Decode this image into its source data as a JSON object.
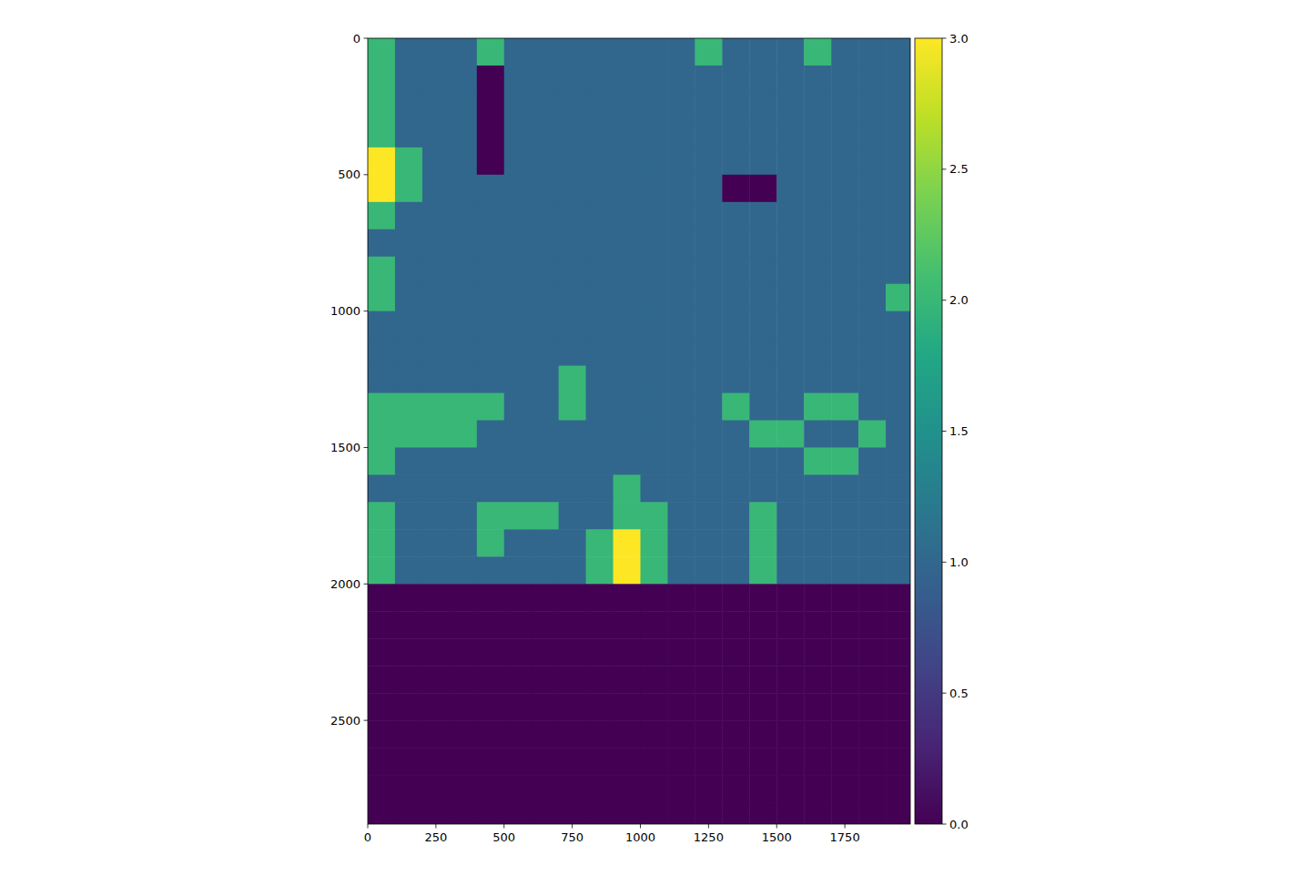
{
  "chart_data": {
    "type": "heatmap",
    "color": "viridis",
    "xlim": [
      0,
      1990
    ],
    "ylim": [
      2880,
      0
    ],
    "xticks": [
      0,
      250,
      500,
      750,
      1000,
      1250,
      1500,
      1750
    ],
    "yticks": [
      0,
      500,
      1000,
      1500,
      2000,
      2500
    ],
    "x_bins": [
      0,
      100,
      200,
      300,
      400,
      500,
      600,
      700,
      800,
      900,
      1000,
      1100,
      1200,
      1300,
      1400,
      1500,
      1600,
      1700,
      1800,
      1900,
      1990
    ],
    "y_bins": [
      0,
      100,
      200,
      300,
      400,
      500,
      600,
      700,
      800,
      900,
      1000,
      1100,
      1200,
      1300,
      1400,
      1500,
      1600,
      1700,
      1800,
      1900,
      2000,
      2100,
      2200,
      2300,
      2400,
      2500,
      2600,
      2700,
      2800,
      2880
    ],
    "values": [
      [
        2,
        1,
        1,
        1,
        2,
        1,
        1,
        1,
        1,
        1,
        1,
        1,
        2,
        1,
        1,
        1,
        2,
        1,
        1,
        1
      ],
      [
        2,
        1,
        1,
        1,
        0,
        1,
        1,
        1,
        1,
        1,
        1,
        1,
        1,
        1,
        1,
        1,
        1,
        1,
        1,
        1
      ],
      [
        2,
        1,
        1,
        1,
        0,
        1,
        1,
        1,
        1,
        1,
        1,
        1,
        1,
        1,
        1,
        1,
        1,
        1,
        1,
        1
      ],
      [
        2,
        1,
        1,
        1,
        0,
        1,
        1,
        1,
        1,
        1,
        1,
        1,
        1,
        1,
        1,
        1,
        1,
        1,
        1,
        1
      ],
      [
        3,
        2,
        1,
        1,
        0,
        1,
        1,
        1,
        1,
        1,
        1,
        1,
        1,
        1,
        1,
        1,
        1,
        1,
        1,
        1
      ],
      [
        3,
        2,
        1,
        1,
        1,
        1,
        1,
        1,
        1,
        1,
        1,
        1,
        1,
        0,
        0,
        1,
        1,
        1,
        1,
        1
      ],
      [
        2,
        1,
        1,
        1,
        1,
        1,
        1,
        1,
        1,
        1,
        1,
        1,
        1,
        1,
        1,
        1,
        1,
        1,
        1,
        1
      ],
      [
        1,
        1,
        1,
        1,
        1,
        1,
        1,
        1,
        1,
        1,
        1,
        1,
        1,
        1,
        1,
        1,
        1,
        1,
        1,
        1
      ],
      [
        2,
        1,
        1,
        1,
        1,
        1,
        1,
        1,
        1,
        1,
        1,
        1,
        1,
        1,
        1,
        1,
        1,
        1,
        1,
        1
      ],
      [
        2,
        1,
        1,
        1,
        1,
        1,
        1,
        1,
        1,
        1,
        1,
        1,
        1,
        1,
        1,
        1,
        1,
        1,
        1,
        2
      ],
      [
        1,
        1,
        1,
        1,
        1,
        1,
        1,
        1,
        1,
        1,
        1,
        1,
        1,
        1,
        1,
        1,
        1,
        1,
        1,
        1
      ],
      [
        1,
        1,
        1,
        1,
        1,
        1,
        1,
        1,
        1,
        1,
        1,
        1,
        1,
        1,
        1,
        1,
        1,
        1,
        1,
        1
      ],
      [
        1,
        1,
        1,
        1,
        1,
        1,
        1,
        2,
        1,
        1,
        1,
        1,
        1,
        1,
        1,
        1,
        1,
        1,
        1,
        1
      ],
      [
        2,
        2,
        2,
        2,
        2,
        1,
        1,
        2,
        1,
        1,
        1,
        1,
        1,
        2,
        1,
        1,
        2,
        2,
        1,
        1
      ],
      [
        2,
        2,
        2,
        2,
        1,
        1,
        1,
        1,
        1,
        1,
        1,
        1,
        1,
        1,
        2,
        2,
        1,
        1,
        2,
        1
      ],
      [
        2,
        1,
        1,
        1,
        1,
        1,
        1,
        1,
        1,
        1,
        1,
        1,
        1,
        1,
        1,
        1,
        2,
        2,
        1,
        1
      ],
      [
        1,
        1,
        1,
        1,
        1,
        1,
        1,
        1,
        1,
        2,
        1,
        1,
        1,
        1,
        1,
        1,
        1,
        1,
        1,
        1
      ],
      [
        2,
        1,
        1,
        1,
        2,
        2,
        2,
        1,
        1,
        2,
        2,
        1,
        1,
        1,
        2,
        1,
        1,
        1,
        1,
        1
      ],
      [
        2,
        1,
        1,
        1,
        2,
        1,
        1,
        1,
        2,
        3,
        2,
        1,
        1,
        1,
        2,
        1,
        1,
        1,
        1,
        1
      ],
      [
        2,
        1,
        1,
        1,
        1,
        1,
        1,
        1,
        2,
        3,
        2,
        1,
        1,
        1,
        2,
        1,
        1,
        1,
        1,
        1
      ],
      [
        0,
        0,
        0,
        0,
        0,
        0,
        0,
        0,
        0,
        0,
        0,
        0,
        0,
        0,
        0,
        0,
        0,
        0,
        0,
        0
      ],
      [
        0,
        0,
        0,
        0,
        0,
        0,
        0,
        0,
        0,
        0,
        0,
        0,
        0,
        0,
        0,
        0,
        0,
        0,
        0,
        0
      ],
      [
        0,
        0,
        0,
        0,
        0,
        0,
        0,
        0,
        0,
        0,
        0,
        0,
        0,
        0,
        0,
        0,
        0,
        0,
        0,
        0
      ],
      [
        0,
        0,
        0,
        0,
        0,
        0,
        0,
        0,
        0,
        0,
        0,
        0,
        0,
        0,
        0,
        0,
        0,
        0,
        0,
        0
      ],
      [
        0,
        0,
        0,
        0,
        0,
        0,
        0,
        0,
        0,
        0,
        0,
        0,
        0,
        0,
        0,
        0,
        0,
        0,
        0,
        0
      ],
      [
        0,
        0,
        0,
        0,
        0,
        0,
        0,
        0,
        0,
        0,
        0,
        0,
        0,
        0,
        0,
        0,
        0,
        0,
        0,
        0
      ],
      [
        0,
        0,
        0,
        0,
        0,
        0,
        0,
        0,
        0,
        0,
        0,
        0,
        0,
        0,
        0,
        0,
        0,
        0,
        0,
        0
      ],
      [
        0,
        0,
        0,
        0,
        0,
        0,
        0,
        0,
        0,
        0,
        0,
        0,
        0,
        0,
        0,
        0,
        0,
        0,
        0,
        0
      ],
      [
        0,
        0,
        0,
        0,
        0,
        0,
        0,
        0,
        0,
        0,
        0,
        0,
        0,
        0,
        0,
        0,
        0,
        0,
        0,
        0
      ]
    ],
    "colorbar_range": [
      0,
      3
    ],
    "colorbar_ticks": [
      {
        "value": 0,
        "label": "0.0"
      },
      {
        "value": 0.5,
        "label": "0.5"
      },
      {
        "value": 1,
        "label": "1.0"
      },
      {
        "value": 1.5,
        "label": "1.5"
      },
      {
        "value": 2,
        "label": "2.0"
      },
      {
        "value": 2.5,
        "label": "2.5"
      },
      {
        "value": 3,
        "label": "3.0"
      }
    ]
  }
}
